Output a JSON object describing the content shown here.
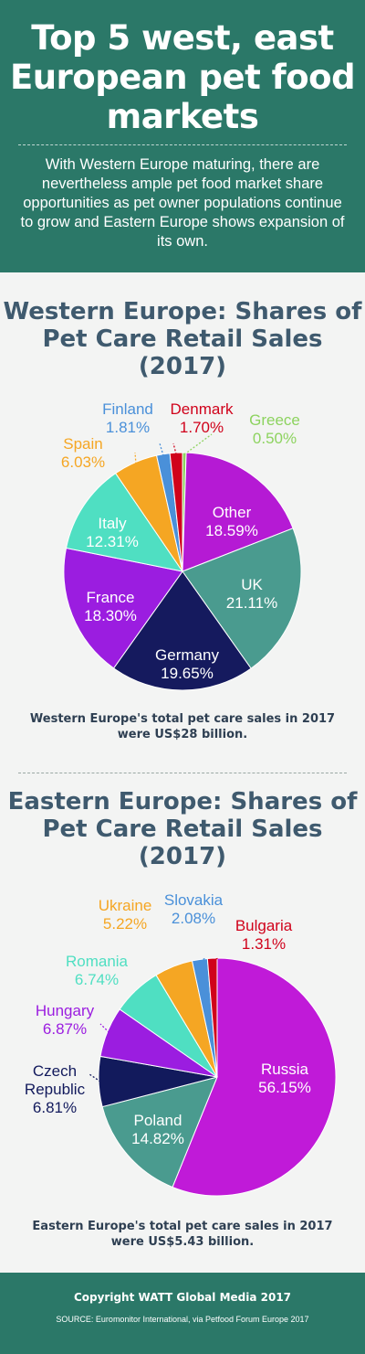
{
  "header": {
    "title": "Top 5 west, east European pet food markets",
    "intro": "With Western Europe maturing, there are nevertheless ample pet food market share opportunities as pet owner populations continue to grow and Eastern Europe shows expansion of its own."
  },
  "chart_data": [
    {
      "type": "pie",
      "title": "Western Europe: Shares of Pet Care Retail Sales (2017)",
      "slices": [
        {
          "label": "Greece",
          "value": 0.5,
          "value_label": "0.50%",
          "color": "#8dd35f"
        },
        {
          "label": "Other",
          "value": 18.59,
          "value_label": "18.59%",
          "color": "#b51ad4"
        },
        {
          "label": "UK",
          "value": 21.11,
          "value_label": "21.11%",
          "color": "#4a9b8f"
        },
        {
          "label": "Germany",
          "value": 19.65,
          "value_label": "19.65%",
          "color": "#151a5e"
        },
        {
          "label": "France",
          "value": 18.3,
          "value_label": "18.30%",
          "color": "#9b1de0"
        },
        {
          "label": "Italy",
          "value": 12.31,
          "value_label": "12.31%",
          "color": "#4fdfc2"
        },
        {
          "label": "Spain",
          "value": 6.03,
          "value_label": "6.03%",
          "color": "#f5a623"
        },
        {
          "label": "Finland",
          "value": 1.81,
          "value_label": "1.81%",
          "color": "#4a90d9"
        },
        {
          "label": "Denmark",
          "value": 1.7,
          "value_label": "1.70%",
          "color": "#d0021b"
        }
      ],
      "note": "Western Europe's total pet care sales in 2017 were US$28 billion."
    },
    {
      "type": "pie",
      "title": "Eastern Europe: Shares of Pet Care Retail Sales (2017)",
      "slices": [
        {
          "label": "Russia",
          "value": 56.15,
          "value_label": "56.15%",
          "color": "#c01ad8"
        },
        {
          "label": "Poland",
          "value": 14.82,
          "value_label": "14.82%",
          "color": "#4a9b8f"
        },
        {
          "label": "Czech Republic",
          "value": 6.81,
          "value_label": "6.81%",
          "color": "#121a5c"
        },
        {
          "label": "Hungary",
          "value": 6.87,
          "value_label": "6.87%",
          "color": "#9b1de0"
        },
        {
          "label": "Romania",
          "value": 6.74,
          "value_label": "6.74%",
          "color": "#4fdfc2"
        },
        {
          "label": "Ukraine",
          "value": 5.22,
          "value_label": "5.22%",
          "color": "#f5a623"
        },
        {
          "label": "Slovakia",
          "value": 2.08,
          "value_label": "2.08%",
          "color": "#4a90d9"
        },
        {
          "label": "Bulgaria",
          "value": 1.31,
          "value_label": "1.31%",
          "color": "#d0021b"
        }
      ],
      "note": "Eastern Europe's total pet care sales in 2017 were US$5.43 billion."
    }
  ],
  "footer": {
    "copyright": "Copyright WATT Global Media 2017",
    "source": "SOURCE: Euromonitor International, via Petfood Forum Europe 2017"
  },
  "colors": {
    "brand": "#2b7868",
    "title_text": "#3f5a6e",
    "background": "#f3f4f3"
  }
}
